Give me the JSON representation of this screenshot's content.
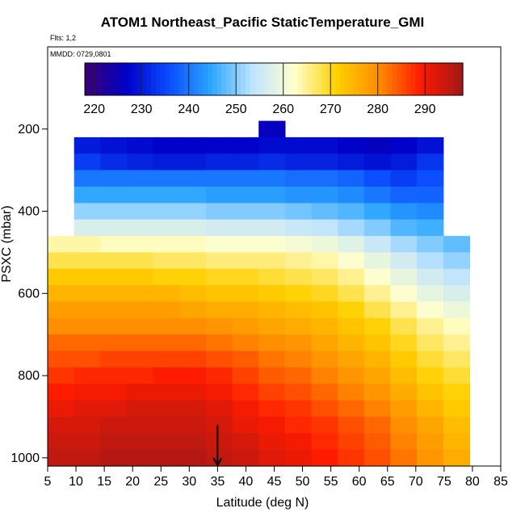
{
  "chart_data": {
    "type": "heatmap",
    "title": "ATOM1 Northeast_Pacific StaticTemperature_GMI",
    "annotations": {
      "flights": "Flts: 1,2",
      "dates": "MMDD: 0729,0801",
      "marker_latitude": 35
    },
    "xlabel": "Latitude (deg N)",
    "ylabel": "PSXC (mbar)",
    "xlim": [
      5,
      85
    ],
    "ylim": [
      1020,
      0
    ],
    "x_ticks": [
      5,
      10,
      15,
      20,
      25,
      30,
      35,
      40,
      45,
      50,
      55,
      60,
      65,
      70,
      75,
      80,
      85
    ],
    "y_ticks": [
      200,
      400,
      600,
      800,
      1000
    ],
    "colorbar": {
      "range": [
        218,
        298
      ],
      "ticks": [
        220,
        230,
        240,
        250,
        260,
        270,
        280,
        290
      ],
      "colors": [
        "#3a0070",
        "#0000c8",
        "#0a4cff",
        "#2aa6ff",
        "#bfe4ff",
        "#ffffcc",
        "#ffd000",
        "#ff8c00",
        "#ff1a00",
        "#a01818"
      ],
      "position": "top-inside"
    },
    "levels": [
      {
        "p": 200,
        "values": [
          null,
          null,
          null,
          null,
          null,
          null,
          null,
          null,
          226,
          null,
          null,
          null,
          null,
          null,
          null,
          null
        ]
      },
      {
        "p": 240,
        "values": [
          null,
          230,
          229,
          228,
          227,
          227,
          227,
          227,
          228,
          228,
          228,
          227,
          226,
          227,
          229,
          null
        ]
      },
      {
        "p": 280,
        "values": [
          null,
          234,
          232,
          231,
          230,
          230,
          231,
          231,
          232,
          231,
          231,
          230,
          229,
          230,
          233,
          null
        ]
      },
      {
        "p": 320,
        "values": [
          null,
          240,
          240,
          240,
          240,
          240,
          240,
          240,
          240,
          239,
          239,
          238,
          236,
          234,
          236,
          null
        ]
      },
      {
        "p": 360,
        "values": [
          null,
          245,
          245,
          245,
          245,
          245,
          244,
          244,
          244,
          243,
          243,
          242,
          240,
          238,
          238,
          null
        ]
      },
      {
        "p": 400,
        "values": [
          null,
          251,
          251,
          251,
          251,
          251,
          250,
          250,
          250,
          249,
          248,
          247,
          245,
          243,
          242,
          null
        ]
      },
      {
        "p": 440,
        "values": [
          null,
          257,
          257,
          257,
          257,
          257,
          256,
          256,
          256,
          255,
          254,
          252,
          250,
          247,
          246,
          null
        ]
      },
      {
        "p": 480,
        "values": [
          264,
          264,
          263,
          263,
          263,
          263,
          262,
          262,
          262,
          261,
          260,
          258,
          255,
          252,
          250,
          248
        ]
      },
      {
        "p": 520,
        "values": [
          268,
          268,
          268,
          268,
          267,
          267,
          266,
          266,
          266,
          265,
          264,
          262,
          259,
          256,
          253,
          251
        ]
      },
      {
        "p": 560,
        "values": [
          272,
          272,
          272,
          272,
          271,
          271,
          270,
          270,
          269,
          268,
          267,
          265,
          262,
          259,
          256,
          254
        ]
      },
      {
        "p": 600,
        "values": [
          275,
          275,
          275,
          275,
          275,
          274,
          273,
          273,
          272,
          271,
          270,
          268,
          265,
          262,
          259,
          257
        ]
      },
      {
        "p": 640,
        "values": [
          278,
          278,
          278,
          278,
          278,
          277,
          276,
          276,
          275,
          274,
          273,
          271,
          268,
          265,
          262,
          260
        ]
      },
      {
        "p": 680,
        "values": [
          280,
          280,
          280,
          280,
          280,
          280,
          279,
          278,
          277,
          276,
          275,
          273,
          271,
          268,
          265,
          263
        ]
      },
      {
        "p": 720,
        "values": [
          283,
          283,
          283,
          283,
          283,
          283,
          282,
          281,
          280,
          279,
          277,
          275,
          273,
          270,
          267,
          265
        ]
      },
      {
        "p": 760,
        "values": [
          285,
          285,
          286,
          286,
          286,
          286,
          285,
          284,
          282,
          281,
          279,
          277,
          275,
          272,
          269,
          267
        ]
      },
      {
        "p": 800,
        "values": [
          287,
          288,
          288,
          288,
          289,
          289,
          288,
          286,
          284,
          283,
          281,
          279,
          277,
          274,
          271,
          269
        ]
      },
      {
        "p": 840,
        "values": [
          289,
          290,
          290,
          291,
          291,
          291,
          290,
          288,
          286,
          285,
          283,
          281,
          279,
          276,
          273,
          271
        ]
      },
      {
        "p": 880,
        "values": [
          291,
          292,
          292,
          293,
          293,
          293,
          292,
          290,
          288,
          287,
          285,
          283,
          281,
          278,
          275,
          272
        ]
      },
      {
        "p": 920,
        "values": [
          293,
          293,
          294,
          294,
          294,
          294,
          293,
          291,
          290,
          288,
          287,
          285,
          283,
          280,
          277,
          274
        ]
      },
      {
        "p": 960,
        "values": [
          294,
          294,
          295,
          295,
          295,
          295,
          294,
          293,
          291,
          290,
          288,
          286,
          284,
          281,
          278,
          275
        ]
      },
      {
        "p": 1000,
        "values": [
          295,
          295,
          296,
          296,
          296,
          296,
          295,
          294,
          292,
          291,
          289,
          287,
          285,
          282,
          279,
          276
        ]
      }
    ]
  }
}
